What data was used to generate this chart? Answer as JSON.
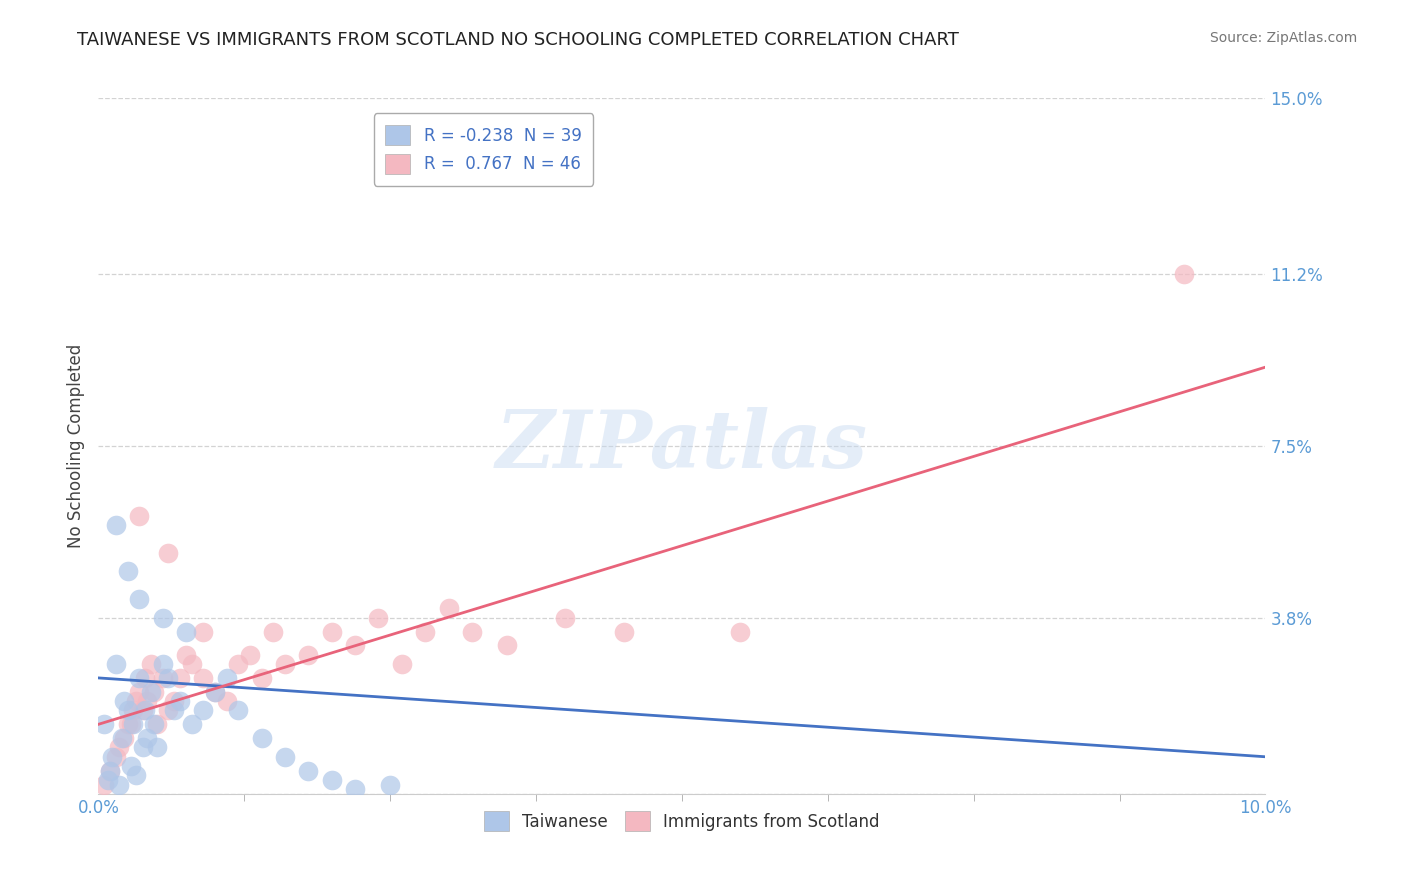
{
  "title": "TAIWANESE VS IMMIGRANTS FROM SCOTLAND NO SCHOOLING COMPLETED CORRELATION CHART",
  "source": "Source: ZipAtlas.com",
  "ylabel": "No Schooling Completed",
  "xlim": [
    0.0,
    10.0
  ],
  "ylim": [
    0.0,
    15.0
  ],
  "ytick_positions": [
    0.0,
    3.8,
    7.5,
    11.2,
    15.0
  ],
  "ytick_labels": [
    "",
    "3.8%",
    "7.5%",
    "11.2%",
    "15.0%"
  ],
  "watermark": "ZIPatlas",
  "legend_series": [
    {
      "label": "Taiwanese",
      "color": "#aec6e8",
      "R": -0.238,
      "N": 39
    },
    {
      "label": "Immigrants from Scotland",
      "color": "#f4b8c1",
      "R": 0.767,
      "N": 46
    }
  ],
  "taiwanese_x": [
    0.05,
    0.08,
    0.1,
    0.12,
    0.15,
    0.18,
    0.2,
    0.22,
    0.25,
    0.28,
    0.3,
    0.32,
    0.35,
    0.38,
    0.4,
    0.42,
    0.45,
    0.48,
    0.5,
    0.55,
    0.6,
    0.65,
    0.7,
    0.75,
    0.8,
    0.9,
    1.0,
    1.1,
    1.2,
    1.4,
    1.6,
    1.8,
    2.0,
    2.5,
    0.15,
    0.25,
    0.35,
    0.55,
    2.2
  ],
  "taiwanese_y": [
    1.5,
    0.3,
    0.5,
    0.8,
    2.8,
    0.2,
    1.2,
    2.0,
    1.8,
    0.6,
    1.5,
    0.4,
    2.5,
    1.0,
    1.8,
    1.2,
    2.2,
    1.5,
    1.0,
    2.8,
    2.5,
    1.8,
    2.0,
    3.5,
    1.5,
    1.8,
    2.2,
    2.5,
    1.8,
    1.2,
    0.8,
    0.5,
    0.3,
    0.2,
    5.8,
    4.8,
    4.2,
    3.8,
    0.1
  ],
  "scotland_x": [
    0.05,
    0.1,
    0.15,
    0.18,
    0.22,
    0.25,
    0.28,
    0.3,
    0.32,
    0.35,
    0.38,
    0.4,
    0.42,
    0.45,
    0.48,
    0.5,
    0.55,
    0.6,
    0.65,
    0.7,
    0.75,
    0.8,
    0.9,
    1.0,
    1.1,
    1.2,
    1.3,
    1.4,
    1.5,
    1.6,
    1.8,
    2.0,
    2.2,
    2.4,
    2.6,
    2.8,
    3.0,
    3.2,
    3.5,
    4.0,
    4.5,
    0.35,
    0.6,
    0.9,
    5.5,
    9.3
  ],
  "scotland_y": [
    0.2,
    0.5,
    0.8,
    1.0,
    1.2,
    1.5,
    1.5,
    1.8,
    2.0,
    2.2,
    1.8,
    2.5,
    2.0,
    2.8,
    2.2,
    1.5,
    2.5,
    1.8,
    2.0,
    2.5,
    3.0,
    2.8,
    2.5,
    2.2,
    2.0,
    2.8,
    3.0,
    2.5,
    3.5,
    2.8,
    3.0,
    3.5,
    3.2,
    3.8,
    2.8,
    3.5,
    4.0,
    3.5,
    3.2,
    3.8,
    3.5,
    6.0,
    5.2,
    3.5,
    3.5,
    11.2
  ],
  "title_color": "#222222",
  "title_fontsize": 13,
  "background_color": "#ffffff",
  "grid_color": "#c8c8c8",
  "taiwanese_line_color": "#4472c4",
  "scotland_line_color": "#e8637a",
  "taiwan_line_start_y": 2.5,
  "taiwan_line_end_y": 0.8,
  "scotland_line_start_y": 1.5,
  "scotland_line_end_y": 9.2
}
